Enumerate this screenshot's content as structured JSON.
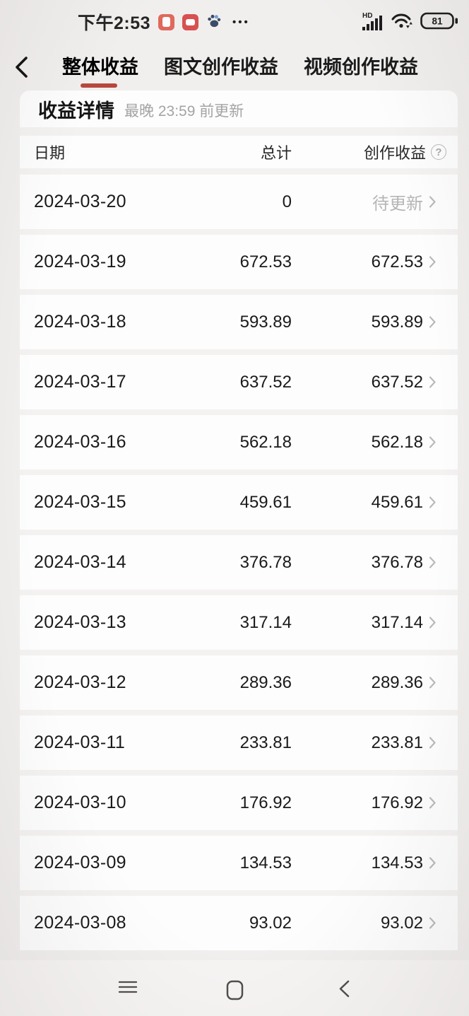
{
  "status_bar": {
    "time": "下午2:53",
    "hd_label": "HD",
    "battery_level": "81"
  },
  "tab_bar": {
    "tabs": [
      {
        "label": "整体收益",
        "active": true
      },
      {
        "label": "图文创作收益",
        "active": false
      },
      {
        "label": "视频创作收益",
        "active": false
      }
    ]
  },
  "panel": {
    "title": "收益详情",
    "update_note": "最晚 23:59 前更新",
    "columns": {
      "date": "日期",
      "total": "总计",
      "creation": "创作收益"
    },
    "help_glyph": "?"
  },
  "table": {
    "rows": [
      {
        "date": "2024-03-20",
        "total": "0",
        "creation": "待更新",
        "pending": true
      },
      {
        "date": "2024-03-19",
        "total": "672.53",
        "creation": "672.53",
        "pending": false
      },
      {
        "date": "2024-03-18",
        "total": "593.89",
        "creation": "593.89",
        "pending": false
      },
      {
        "date": "2024-03-17",
        "total": "637.52",
        "creation": "637.52",
        "pending": false
      },
      {
        "date": "2024-03-16",
        "total": "562.18",
        "creation": "562.18",
        "pending": false
      },
      {
        "date": "2024-03-15",
        "total": "459.61",
        "creation": "459.61",
        "pending": false
      },
      {
        "date": "2024-03-14",
        "total": "376.78",
        "creation": "376.78",
        "pending": false
      },
      {
        "date": "2024-03-13",
        "total": "317.14",
        "creation": "317.14",
        "pending": false
      },
      {
        "date": "2024-03-12",
        "total": "289.36",
        "creation": "289.36",
        "pending": false
      },
      {
        "date": "2024-03-11",
        "total": "233.81",
        "creation": "233.81",
        "pending": false
      },
      {
        "date": "2024-03-10",
        "total": "176.92",
        "creation": "176.92",
        "pending": false
      },
      {
        "date": "2024-03-09",
        "total": "134.53",
        "creation": "134.53",
        "pending": false
      },
      {
        "date": "2024-03-08",
        "total": "93.02",
        "creation": "93.02",
        "pending": false
      }
    ]
  },
  "colors": {
    "accent": "#b7473e",
    "pending_text": "#b6b6b6",
    "app_icon_1": "#e0695c",
    "app_icon_2": "#d85050",
    "row_chevron": "#b9b9b9"
  }
}
